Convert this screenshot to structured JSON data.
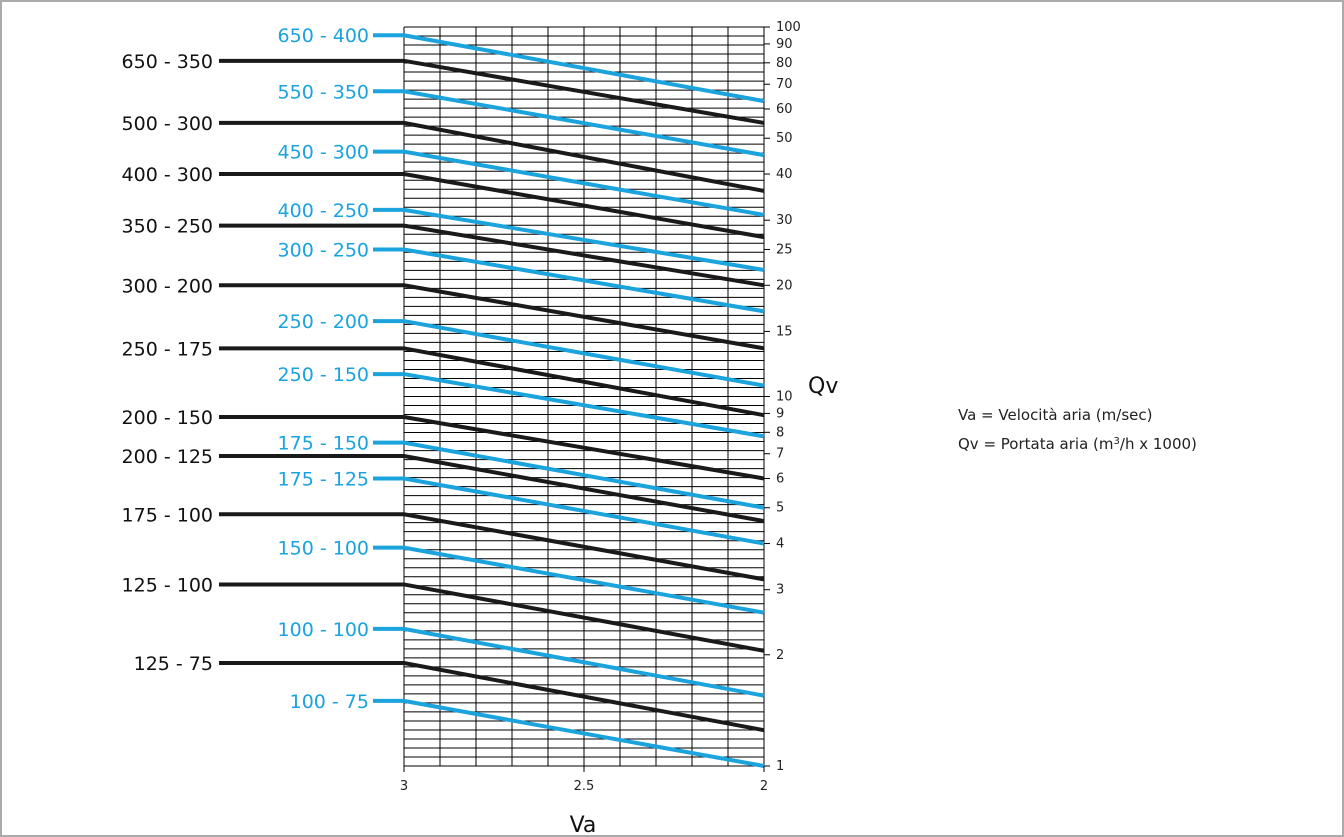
{
  "chart_data": {
    "type": "line",
    "xlabel": "Va",
    "ylabel": "Qv",
    "x_ticks": [
      "3",
      "2.5",
      "2"
    ],
    "y_ticks": [
      "1",
      "2",
      "3",
      "4",
      "5",
      "6",
      "7",
      "8",
      "9",
      "10",
      "15",
      "20",
      "25",
      "30",
      "40",
      "50",
      "60",
      "70",
      "80",
      "90",
      "100"
    ],
    "y_scale": "log",
    "xlim": [
      3,
      2
    ],
    "ylim": [
      1,
      100
    ],
    "legend": {
      "va_text": "Va = Velocità aria (m/sec)",
      "qv_prefix": "Qv = Portata aria (m",
      "qv_sup": "3",
      "qv_suffix": "/h x 1000)"
    },
    "colors": {
      "black": "#1a1a1a",
      "blue": "#1aa3dc"
    },
    "series": [
      {
        "name": "650 - 400",
        "color": "blue",
        "values": [
          95,
          63
        ]
      },
      {
        "name": "650 - 350",
        "color": "black",
        "values": [
          81,
          55
        ]
      },
      {
        "name": "550 - 350",
        "color": "blue",
        "values": [
          67,
          45
        ]
      },
      {
        "name": "500 - 300",
        "color": "black",
        "values": [
          55,
          36
        ]
      },
      {
        "name": "450 - 300",
        "color": "blue",
        "values": [
          46,
          31
        ]
      },
      {
        "name": "400 - 300",
        "color": "black",
        "values": [
          40,
          27
        ]
      },
      {
        "name": "400 - 250",
        "color": "blue",
        "values": [
          32,
          22
        ]
      },
      {
        "name": "350 - 250",
        "color": "black",
        "values": [
          29,
          20
        ]
      },
      {
        "name": "300 - 250",
        "color": "blue",
        "values": [
          25,
          17
        ]
      },
      {
        "name": "300 - 200",
        "color": "black",
        "values": [
          20,
          13.5
        ]
      },
      {
        "name": "250 - 200",
        "color": "blue",
        "values": [
          16,
          10.7
        ]
      },
      {
        "name": "250 - 175",
        "color": "black",
        "values": [
          13.5,
          8.9
        ]
      },
      {
        "name": "250 - 150",
        "color": "blue",
        "values": [
          11.5,
          7.8
        ]
      },
      {
        "name": "200 - 150",
        "color": "black",
        "values": [
          8.8,
          6
        ]
      },
      {
        "name": "175 - 150",
        "color": "blue",
        "values": [
          7.5,
          5
        ]
      },
      {
        "name": "200 - 125",
        "color": "black",
        "values": [
          6.9,
          4.6
        ]
      },
      {
        "name": "175 - 125",
        "color": "blue",
        "values": [
          6,
          4
        ]
      },
      {
        "name": "175 - 100",
        "color": "black",
        "values": [
          4.8,
          3.2
        ]
      },
      {
        "name": "150 - 100",
        "color": "blue",
        "values": [
          3.9,
          2.6
        ]
      },
      {
        "name": "125 - 100",
        "color": "black",
        "values": [
          3.1,
          2.05
        ]
      },
      {
        "name": "100 - 100",
        "color": "blue",
        "values": [
          2.35,
          1.55
        ]
      },
      {
        "name": "125 - 75",
        "color": "black",
        "values": [
          1.9,
          1.25
        ]
      },
      {
        "name": "100 - 75",
        "color": "blue",
        "values": [
          1.5,
          1.0
        ]
      }
    ]
  }
}
